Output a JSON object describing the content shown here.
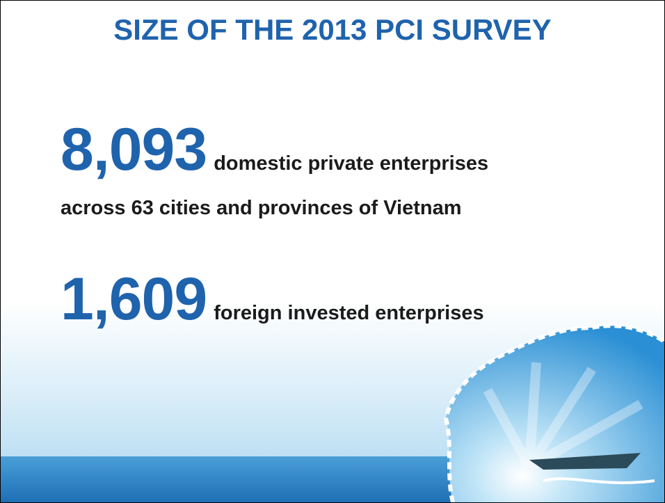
{
  "title": "SIZE OF THE 2013 PCI SURVEY",
  "items": [
    {
      "number": "8,093",
      "text": "domestic private enterprises",
      "detail": "across 63 cities and provinces of Vietnam"
    },
    {
      "number": "1,609",
      "text": "foreign invested enterprises"
    }
  ]
}
